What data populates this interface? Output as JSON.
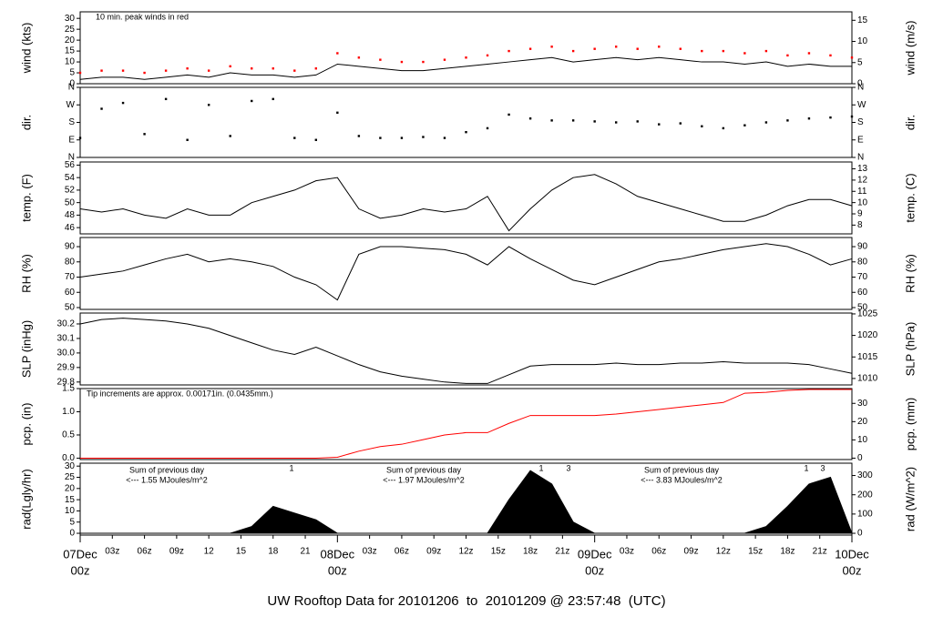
{
  "chart_data": [
    {
      "type": "line",
      "ylabel": "wind (kts)",
      "y2label": "wind (m/s)",
      "annotation": "10 min. peak winds in red",
      "x": [
        0,
        2,
        4,
        6,
        8,
        10,
        12,
        14,
        16,
        18,
        20,
        22,
        24,
        26,
        28,
        30,
        32,
        34,
        36,
        38,
        40,
        42,
        44,
        46,
        48,
        50,
        52,
        54,
        56,
        58,
        60,
        62,
        64,
        66,
        68,
        70,
        72
      ],
      "series": [
        {
          "color": "#000000",
          "style": "line",
          "values": [
            2,
            3,
            3,
            2,
            3,
            4,
            3,
            5,
            4,
            4,
            3,
            4,
            9,
            8,
            7,
            6,
            6,
            7,
            8,
            9,
            10,
            11,
            12,
            10,
            11,
            12,
            11,
            12,
            11,
            10,
            10,
            9,
            10,
            8,
            9,
            8,
            8
          ]
        },
        {
          "color": "#ff0000",
          "style": "dots",
          "values": [
            5,
            6,
            6,
            5,
            6,
            7,
            6,
            8,
            7,
            7,
            6,
            7,
            14,
            12,
            11,
            10,
            10,
            11,
            12,
            13,
            15,
            16,
            17,
            15,
            16,
            17,
            16,
            17,
            16,
            15,
            15,
            14,
            15,
            13,
            14,
            13,
            12
          ]
        }
      ],
      "ylim": [
        0,
        33
      ],
      "yticks": [
        0,
        5,
        10,
        15,
        20,
        25,
        30
      ],
      "y2lim": [
        0,
        17
      ],
      "y2ticks": [
        0,
        5,
        10,
        15
      ]
    },
    {
      "type": "scatter",
      "ylabel": "dir.",
      "y2label": "dir.",
      "x": [
        0,
        2,
        4,
        6,
        8,
        10,
        12,
        14,
        16,
        18,
        20,
        22,
        24,
        26,
        28,
        30,
        32,
        34,
        36,
        38,
        40,
        42,
        44,
        46,
        48,
        50,
        52,
        54,
        56,
        58,
        60,
        62,
        64,
        66,
        68,
        70,
        72
      ],
      "series": [
        {
          "color": "#000000",
          "values": [
            100,
            250,
            280,
            120,
            300,
            90,
            270,
            110,
            290,
            300,
            100,
            90,
            230,
            110,
            100,
            100,
            105,
            100,
            130,
            150,
            220,
            200,
            190,
            190,
            185,
            180,
            185,
            170,
            175,
            160,
            150,
            165,
            180,
            190,
            200,
            205,
            210
          ]
        }
      ],
      "ylim": [
        0,
        360
      ],
      "yticks": [
        {
          "value": 0,
          "label": "N"
        },
        {
          "value": 90,
          "label": "E"
        },
        {
          "value": 180,
          "label": "S"
        },
        {
          "value": 270,
          "label": "W"
        },
        {
          "value": 360,
          "label": "N"
        }
      ],
      "y2lim": [
        0,
        360
      ],
      "y2ticks": [
        {
          "value": 0,
          "label": "N"
        },
        {
          "value": 90,
          "label": "E"
        },
        {
          "value": 180,
          "label": "S"
        },
        {
          "value": 270,
          "label": "W"
        },
        {
          "value": 360,
          "label": "N"
        }
      ]
    },
    {
      "type": "line",
      "ylabel": "temp. (F)",
      "y2label": "temp. (C)",
      "x": [
        0,
        2,
        4,
        6,
        8,
        10,
        12,
        14,
        16,
        18,
        20,
        22,
        24,
        26,
        28,
        30,
        32,
        34,
        36,
        38,
        40,
        42,
        44,
        46,
        48,
        50,
        52,
        54,
        56,
        58,
        60,
        62,
        64,
        66,
        68,
        70,
        72
      ],
      "series": [
        {
          "color": "#000000",
          "style": "line",
          "values": [
            49,
            48.5,
            49,
            48,
            47.5,
            49,
            48,
            48,
            50,
            51,
            52,
            53.5,
            54,
            49,
            47.5,
            48,
            49,
            48.5,
            49,
            51,
            45.5,
            49,
            52,
            54,
            54.5,
            53,
            51,
            50,
            49,
            48,
            47,
            47,
            48,
            49.5,
            50.5,
            50.5,
            49.5
          ]
        }
      ],
      "ylim": [
        45,
        56.5
      ],
      "yticks": [
        46,
        48,
        50,
        52,
        54,
        56
      ],
      "y2lim": [
        7.22,
        13.61
      ],
      "y2ticks": [
        8,
        9,
        10,
        11,
        12,
        13
      ]
    },
    {
      "type": "line",
      "ylabel": "RH (%)",
      "y2label": "RH (%)",
      "x": [
        0,
        2,
        4,
        6,
        8,
        10,
        12,
        14,
        16,
        18,
        20,
        22,
        24,
        26,
        28,
        30,
        32,
        34,
        36,
        38,
        40,
        42,
        44,
        46,
        48,
        50,
        52,
        54,
        56,
        58,
        60,
        62,
        64,
        66,
        68,
        70,
        72
      ],
      "series": [
        {
          "color": "#000000",
          "style": "line",
          "values": [
            70,
            72,
            74,
            78,
            82,
            85,
            80,
            82,
            80,
            77,
            70,
            65,
            55,
            85,
            90,
            90,
            89,
            88,
            85,
            78,
            90,
            82,
            75,
            68,
            65,
            70,
            75,
            80,
            82,
            85,
            88,
            90,
            92,
            90,
            85,
            78,
            82
          ]
        }
      ],
      "ylim": [
        48.8,
        96
      ],
      "yticks": [
        50,
        60,
        70,
        80,
        90
      ],
      "y2lim": [
        48.8,
        96
      ],
      "y2ticks": [
        50,
        60,
        70,
        80,
        90
      ]
    },
    {
      "type": "line",
      "ylabel": "SLP (inHg)",
      "y2label": "SLP (hPa)",
      "x": [
        0,
        2,
        4,
        6,
        8,
        10,
        12,
        14,
        16,
        18,
        20,
        22,
        24,
        26,
        28,
        30,
        32,
        34,
        36,
        38,
        40,
        42,
        44,
        46,
        48,
        50,
        52,
        54,
        56,
        58,
        60,
        62,
        64,
        66,
        68,
        70,
        72
      ],
      "series": [
        {
          "color": "#000000",
          "style": "line",
          "values": [
            30.2,
            30.23,
            30.24,
            30.23,
            30.22,
            30.2,
            30.17,
            30.12,
            30.07,
            30.02,
            29.99,
            30.04,
            29.98,
            29.92,
            29.87,
            29.84,
            29.82,
            29.8,
            29.79,
            29.79,
            29.85,
            29.91,
            29.92,
            29.92,
            29.92,
            29.93,
            29.92,
            29.92,
            29.93,
            29.93,
            29.94,
            29.93,
            29.93,
            29.93,
            29.92,
            29.89,
            29.86
          ]
        }
      ],
      "ylim": [
        29.78,
        30.275
      ],
      "yticks": [
        29.8,
        29.9,
        {
          "value": 30,
          "label": "30.0"
        },
        30.1,
        30.2
      ],
      "y2lim": [
        1008.5,
        1025.2
      ],
      "y2ticks": [
        1010,
        1015,
        1020,
        1025
      ]
    },
    {
      "type": "line",
      "ylabel": "pcp. (in)",
      "y2label": "pcp. (mm)",
      "annotation": "Tip increments are approx. 0.00171in. (0.0435mm.)",
      "x": [
        0,
        2,
        4,
        6,
        8,
        10,
        12,
        14,
        16,
        18,
        20,
        22,
        24,
        26,
        28,
        30,
        32,
        34,
        36,
        38,
        40,
        42,
        44,
        46,
        48,
        50,
        52,
        54,
        56,
        58,
        60,
        62,
        64,
        66,
        68,
        70,
        72
      ],
      "series": [
        {
          "color": "#ff0000",
          "style": "line",
          "values": [
            0,
            0,
            0,
            0,
            0,
            0,
            0,
            0,
            0,
            0,
            0,
            0,
            0.02,
            0.15,
            0.25,
            0.3,
            0.4,
            0.5,
            0.55,
            0.55,
            0.75,
            0.92,
            0.92,
            0.92,
            0.92,
            0.95,
            1,
            1.05,
            1.1,
            1.15,
            1.2,
            1.4,
            1.42,
            1.46,
            1.48,
            1.48,
            1.48
          ]
        }
      ],
      "ylim": [
        -0.03,
        1.5
      ],
      "yticks": [
        {
          "value": 0,
          "label": "0.0"
        },
        0.5,
        {
          "value": 1,
          "label": "1.0"
        },
        1.5
      ],
      "y2lim": [
        -0.76,
        38.1
      ],
      "y2ticks": [
        0,
        10,
        20,
        30
      ]
    },
    {
      "type": "area",
      "ylabel": "rad(Lgly/hr)",
      "y2label": "rad (W/m^2)",
      "annotations": [
        "Sum of previous day",
        "<--- 1.55 MJoules/m^2",
        "Sum of previous day",
        "<--- 1.97 MJoules/m^2",
        "Sum of previous day",
        "<--- 3.83 MJoules/m^2",
        "1",
        "1",
        "3",
        "1",
        "3"
      ],
      "x": [
        0,
        2,
        4,
        6,
        8,
        10,
        12,
        14,
        16,
        18,
        20,
        22,
        24,
        26,
        28,
        30,
        32,
        34,
        36,
        38,
        40,
        42,
        44,
        46,
        48,
        50,
        52,
        54,
        56,
        58,
        60,
        62,
        64,
        66,
        68,
        70,
        72
      ],
      "series": [
        {
          "color": "#000000",
          "values": [
            0,
            0,
            0,
            0,
            0,
            0,
            0,
            0,
            3,
            12,
            9,
            6,
            0,
            0,
            0,
            0,
            0,
            0,
            0,
            0,
            15,
            28,
            22,
            5,
            0,
            0,
            0,
            0,
            0,
            0,
            0,
            0,
            3,
            12,
            22,
            25,
            0
          ]
        }
      ],
      "ylim": [
        -0.8,
        31.3
      ],
      "yticks": [
        0,
        5,
        10,
        15,
        20,
        25,
        30
      ],
      "y2lim": [
        -9.3,
        364
      ],
      "y2ticks": [
        0,
        100,
        200,
        300
      ],
      "xlim": [
        0,
        72
      ],
      "xticks": [
        {
          "value": 3,
          "label": "03z"
        },
        {
          "value": 6,
          "label": "06z"
        },
        {
          "value": 9,
          "label": "09z"
        },
        12,
        15,
        18,
        21,
        {
          "value": 27,
          "label": "03z"
        },
        {
          "value": 30,
          "label": "06z"
        },
        {
          "value": 33,
          "label": "09z"
        },
        {
          "value": 36,
          "label": "12z"
        },
        {
          "value": 39,
          "label": "15z"
        },
        {
          "value": 42,
          "label": "18z"
        },
        {
          "value": 45,
          "label": "21z"
        },
        {
          "value": 51,
          "label": "03z"
        },
        {
          "value": 54,
          "label": "06z"
        },
        {
          "value": 57,
          "label": "09z"
        },
        {
          "value": 60,
          "label": "12z"
        },
        {
          "value": 63,
          "label": "15z"
        },
        {
          "value": 66,
          "label": "18z"
        },
        {
          "value": 69,
          "label": "21z"
        }
      ],
      "day_ticks": [
        {
          "value": 0,
          "label": "07Dec",
          "label2": "00z"
        },
        {
          "value": 24,
          "label": "08Dec",
          "label2": "00z"
        },
        {
          "value": 48,
          "label": "09Dec",
          "label2": "00z"
        },
        {
          "value": 72,
          "label": "10Dec",
          "label2": "00z"
        }
      ],
      "footer": "UW Rooftop Data for 20101206  to  20101209 @ 23:57:48  (UTC)"
    }
  ]
}
